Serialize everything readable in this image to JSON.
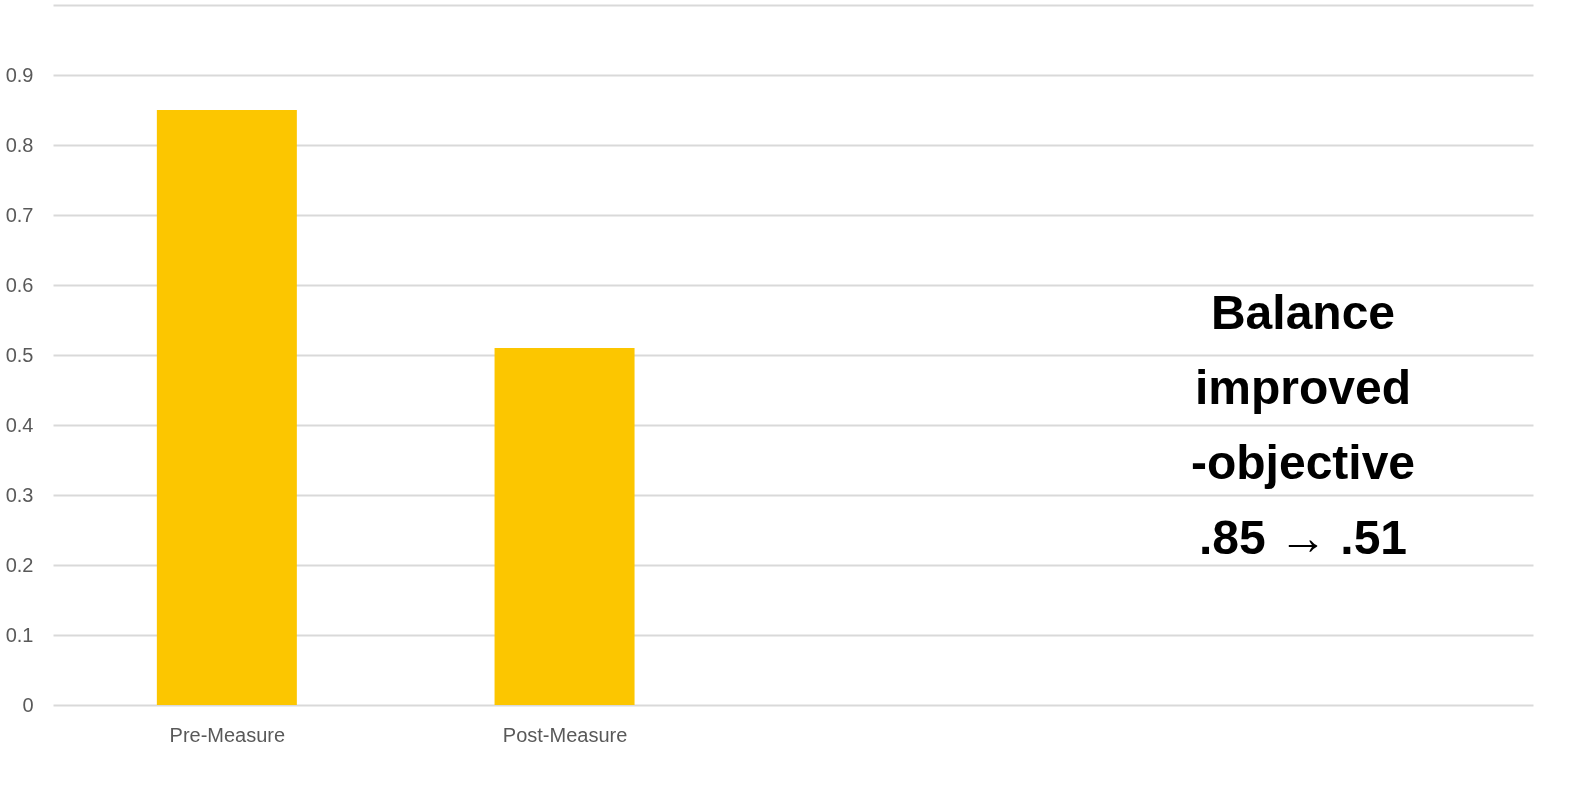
{
  "chart_data": {
    "type": "bar",
    "categories": [
      "Pre-Measure",
      "Post-Measure"
    ],
    "series": [
      {
        "color": "#fcc600",
        "values": [
          0.85,
          0.51
        ]
      }
    ],
    "ylim": [
      0,
      1
    ],
    "yticks": [
      0,
      0.1,
      0.2,
      0.3,
      0.4,
      0.5,
      0.6,
      0.7,
      0.8,
      0.9,
      {
        "value": 1,
        "label": null
      }
    ],
    "grid": "y",
    "annotations": [
      "Balance\nimproved\n-objective\n.85 → .51"
    ]
  }
}
